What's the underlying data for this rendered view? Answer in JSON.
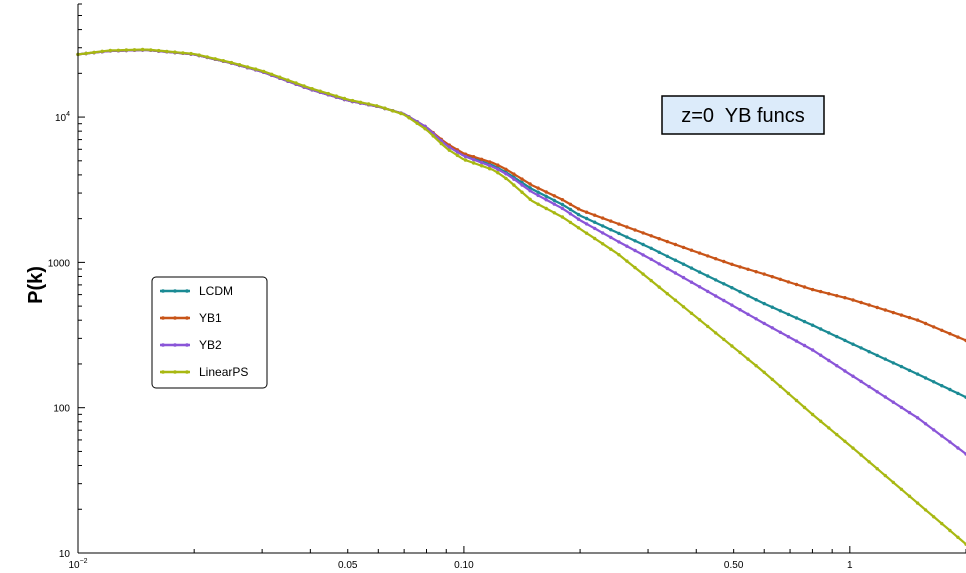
{
  "chart_data": {
    "type": "line",
    "title": "",
    "xlabel": "",
    "ylabel": "P(k)",
    "xscale": "log",
    "yscale": "log",
    "xlim": [
      0.01,
      2.0
    ],
    "ylim": [
      10,
      60000
    ],
    "grid": false,
    "legend_placement": "middle-left",
    "x_ticks": [
      {
        "value": 0.01,
        "label": "10",
        "sup": "−2"
      },
      {
        "value": 0.05,
        "label": "0.05",
        "sup": ""
      },
      {
        "value": 0.1,
        "label": "0.10",
        "sup": ""
      },
      {
        "value": 0.5,
        "label": "0.50",
        "sup": ""
      },
      {
        "value": 1,
        "label": "1",
        "sup": ""
      }
    ],
    "y_ticks": [
      {
        "value": 10,
        "label": "10",
        "sup": ""
      },
      {
        "value": 100,
        "label": "100",
        "sup": ""
      },
      {
        "value": 1000,
        "label": "1000",
        "sup": ""
      },
      {
        "value": 10000,
        "label": "10",
        "sup": "4"
      }
    ],
    "annotation": "z=0  YB funcs",
    "series": [
      {
        "name": "LCDM",
        "color": "#1a8a94",
        "x": [
          0.01,
          0.012,
          0.015,
          0.02,
          0.025,
          0.03,
          0.04,
          0.05,
          0.06,
          0.07,
          0.08,
          0.09,
          0.1,
          0.12,
          0.13,
          0.15,
          0.18,
          0.2,
          0.25,
          0.3,
          0.4,
          0.5,
          0.6,
          0.8,
          1.0,
          1.5,
          2.0
        ],
        "y": [
          27000,
          28500,
          29000,
          27000,
          23500,
          20500,
          15500,
          13000,
          11800,
          10500,
          8500,
          6500,
          5500,
          4600,
          4100,
          3200,
          2500,
          2100,
          1600,
          1280,
          880,
          660,
          520,
          370,
          280,
          170,
          118
        ]
      },
      {
        "name": "YB1",
        "color": "#c85418",
        "x": [
          0.01,
          0.012,
          0.015,
          0.02,
          0.025,
          0.03,
          0.04,
          0.05,
          0.06,
          0.07,
          0.08,
          0.09,
          0.1,
          0.12,
          0.13,
          0.15,
          0.18,
          0.2,
          0.25,
          0.3,
          0.4,
          0.5,
          0.6,
          0.8,
          1.0,
          1.5,
          2.0
        ],
        "y": [
          27000,
          28500,
          29000,
          27000,
          23500,
          20500,
          15500,
          13000,
          11800,
          10500,
          8500,
          6600,
          5600,
          4800,
          4300,
          3400,
          2700,
          2300,
          1850,
          1550,
          1180,
          960,
          830,
          650,
          560,
          400,
          290
        ]
      },
      {
        "name": "YB2",
        "color": "#8a55d8",
        "x": [
          0.01,
          0.012,
          0.015,
          0.02,
          0.025,
          0.03,
          0.04,
          0.05,
          0.06,
          0.07,
          0.08,
          0.09,
          0.1,
          0.12,
          0.13,
          0.15,
          0.18,
          0.2,
          0.25,
          0.3,
          0.4,
          0.5,
          0.6,
          0.8,
          1.0,
          1.5,
          2.0
        ],
        "y": [
          27000,
          28500,
          29000,
          27000,
          23500,
          20500,
          15500,
          13000,
          11800,
          10500,
          8500,
          6400,
          5400,
          4500,
          4000,
          3050,
          2350,
          1950,
          1400,
          1080,
          700,
          500,
          380,
          250,
          170,
          85,
          48
        ]
      },
      {
        "name": "LinearPS",
        "color": "#a8b812",
        "x": [
          0.01,
          0.012,
          0.015,
          0.02,
          0.025,
          0.03,
          0.04,
          0.05,
          0.06,
          0.07,
          0.08,
          0.09,
          0.1,
          0.12,
          0.13,
          0.15,
          0.18,
          0.2,
          0.25,
          0.3,
          0.4,
          0.5,
          0.6,
          0.8,
          1.0,
          1.5,
          2.0
        ],
        "y": [
          27000,
          28700,
          29200,
          27200,
          23700,
          20800,
          15800,
          13200,
          11900,
          10400,
          8200,
          6100,
          5100,
          4300,
          3700,
          2650,
          2050,
          1700,
          1150,
          780,
          420,
          260,
          175,
          90,
          55,
          22,
          11.5
        ]
      }
    ]
  }
}
